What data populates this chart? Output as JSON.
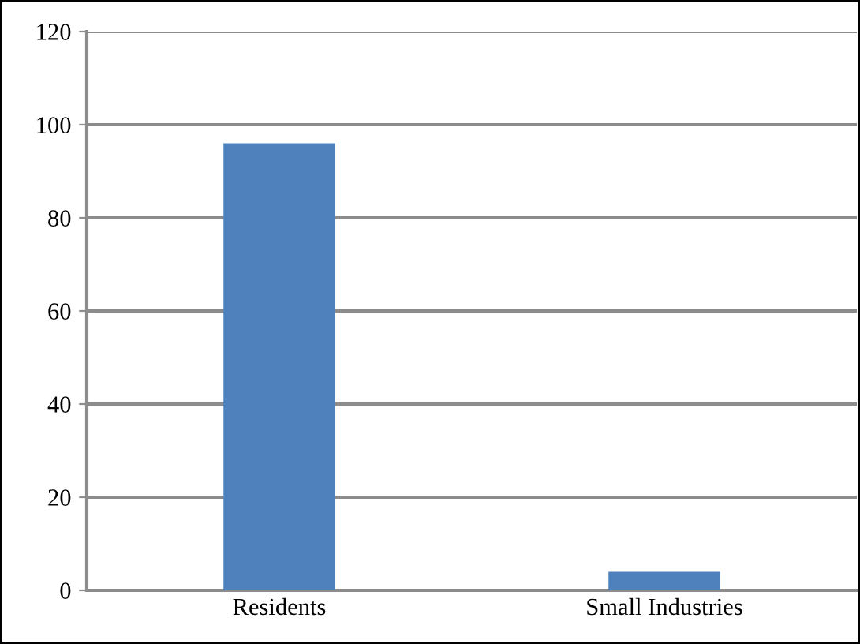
{
  "chart_data": {
    "type": "bar",
    "categories": [
      "Residents",
      "Small Industries"
    ],
    "values": [
      96,
      4
    ],
    "color": "#4f81bd",
    "ylim": [
      0,
      120
    ],
    "yticks": [
      0,
      20,
      40,
      60,
      80,
      100,
      120
    ],
    "grid": "y"
  }
}
